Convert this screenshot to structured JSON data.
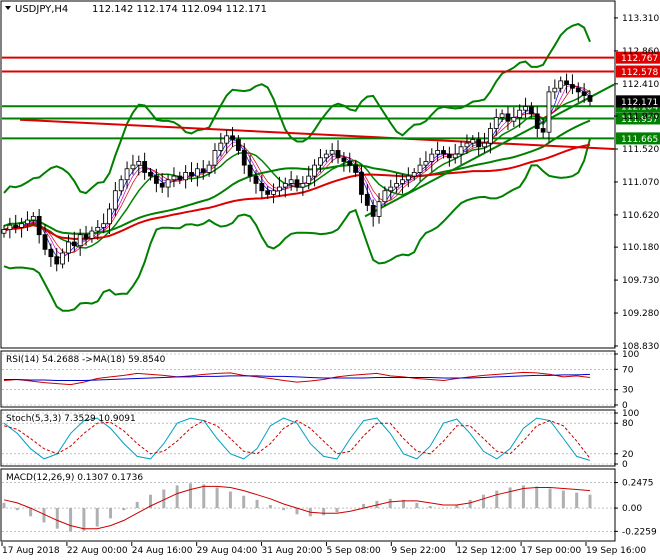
{
  "header": {
    "symbol": "USDJPY,H4",
    "ohlc": "112.142 112.174 112.094 112.171"
  },
  "chart_data": [
    {
      "type": "candlestick",
      "pane": "price",
      "ylim": [
        108.83,
        113.5
      ],
      "y_ticks": [
        "113.310",
        "112.860",
        "112.410",
        "111.970",
        "111.520",
        "111.070",
        "110.620",
        "110.180",
        "109.730",
        "109.280",
        "108.830"
      ],
      "x_ticks": [
        "17 Aug 2018",
        "22 Aug 00:00",
        "24 Aug 16:00",
        "29 Aug 04:00",
        "31 Aug 20:00",
        "5 Sep 08:00",
        "9 Sep 22:00",
        "12 Sep 12:00",
        "17 Sep 00:00",
        "19 Sep 16:00"
      ],
      "horizontal_levels": [
        {
          "value": 112.767,
          "label": "112.767",
          "color": "#dd0000"
        },
        {
          "value": 112.578,
          "label": "112.578",
          "color": "#dd0000"
        },
        {
          "value": 112.104,
          "label": "112.104",
          "color": "#008000"
        },
        {
          "value": 111.937,
          "label": "111.937",
          "color": "#008000"
        },
        {
          "value": 111.665,
          "label": "111.665",
          "color": "#008000"
        }
      ],
      "current_price": {
        "value": 112.171,
        "label": "112.171"
      },
      "closes": [
        110.42,
        110.48,
        110.45,
        110.5,
        110.55,
        110.6,
        110.35,
        110.15,
        110.05,
        109.95,
        110.1,
        110.25,
        110.2,
        110.35,
        110.3,
        110.4,
        110.45,
        110.5,
        110.7,
        110.95,
        111.1,
        111.25,
        111.3,
        111.35,
        111.2,
        111.15,
        111.05,
        111.0,
        111.1,
        111.15,
        111.1,
        111.2,
        111.15,
        111.25,
        111.2,
        111.3,
        111.5,
        111.6,
        111.7,
        111.65,
        111.5,
        111.3,
        111.15,
        111.05,
        110.95,
        110.9,
        110.95,
        111.0,
        111.05,
        111.1,
        111.0,
        111.05,
        111.15,
        111.3,
        111.4,
        111.45,
        111.5,
        111.4,
        111.35,
        111.3,
        111.2,
        110.9,
        110.75,
        110.6,
        110.8,
        110.95,
        111.0,
        111.05,
        111.1,
        111.15,
        111.2,
        111.3,
        111.35,
        111.45,
        111.5,
        111.45,
        111.4,
        111.45,
        111.55,
        111.6,
        111.65,
        111.55,
        111.6,
        111.8,
        111.95,
        112.0,
        111.9,
        111.95,
        112.05,
        112.1,
        112.0,
        111.8,
        111.75,
        112.3,
        112.35,
        112.45,
        112.4,
        112.35,
        112.3,
        112.25,
        112.17
      ]
    },
    {
      "type": "line",
      "pane": "RSI",
      "label": "RSI(14) 54.2688  ->MA(18) 59.8540",
      "y_ticks": [
        "100",
        "70",
        "30",
        "0"
      ],
      "ylim": [
        0,
        100
      ],
      "series": [
        {
          "name": "RSI(14)",
          "color": "#cc0000",
          "values": [
            48,
            50,
            47,
            44,
            42,
            40,
            45,
            52,
            55,
            58,
            62,
            60,
            58,
            55,
            57,
            60,
            62,
            63,
            58,
            55,
            52,
            48,
            45,
            47,
            50,
            55,
            58,
            60,
            62,
            57,
            55,
            52,
            50,
            48,
            52,
            55,
            58,
            60,
            62,
            64,
            63,
            60,
            55,
            57,
            54
          ]
        },
        {
          "name": "MA(18)",
          "color": "#0000cc",
          "values": [
            50,
            50,
            49,
            49,
            48,
            48,
            48,
            49,
            50,
            51,
            52,
            53,
            54,
            55,
            55,
            56,
            56,
            57,
            57,
            57,
            56,
            56,
            55,
            54,
            53,
            53,
            53,
            53,
            54,
            54,
            54,
            54,
            54,
            53,
            53,
            53,
            54,
            55,
            56,
            57,
            58,
            58,
            59,
            59,
            60
          ]
        }
      ]
    },
    {
      "type": "line",
      "pane": "Stochastic",
      "label": "Stoch(5,3,3) 7.3529 10.9091",
      "y_ticks": [
        "100",
        "80",
        "20",
        "0"
      ],
      "ylim": [
        0,
        100
      ],
      "series": [
        {
          "name": "%K",
          "color": "#00a0c0",
          "values": [
            80,
            60,
            30,
            10,
            20,
            60,
            85,
            90,
            70,
            40,
            15,
            10,
            40,
            80,
            90,
            85,
            50,
            20,
            10,
            30,
            75,
            90,
            80,
            40,
            15,
            10,
            50,
            85,
            90,
            60,
            20,
            10,
            35,
            80,
            88,
            60,
            25,
            10,
            30,
            70,
            90,
            85,
            50,
            15,
            7
          ]
        },
        {
          "name": "%D",
          "color": "#cc0000",
          "values": [
            75,
            68,
            50,
            30,
            20,
            35,
            60,
            80,
            82,
            65,
            40,
            20,
            25,
            45,
            70,
            85,
            75,
            50,
            25,
            20,
            40,
            70,
            85,
            70,
            45,
            20,
            25,
            55,
            80,
            80,
            50,
            25,
            20,
            45,
            75,
            75,
            50,
            25,
            20,
            45,
            75,
            85,
            75,
            45,
            11
          ]
        }
      ]
    },
    {
      "type": "bar",
      "pane": "MACD",
      "label": "MACD(12,26,9) 0.1307 0.1736",
      "y_ticks": [
        "0.2475",
        "0.00",
        "-0.2259"
      ],
      "ylim": [
        -0.3,
        0.35
      ],
      "series": [
        {
          "name": "MACD",
          "values": [
            0.05,
            -0.02,
            -0.08,
            -0.14,
            -0.2,
            -0.23,
            -0.22,
            -0.18,
            -0.1,
            -0.02,
            0.06,
            0.13,
            0.18,
            0.22,
            0.24,
            0.23,
            0.2,
            0.16,
            0.12,
            0.08,
            0.03,
            -0.02,
            -0.06,
            -0.08,
            -0.07,
            -0.04,
            0.0,
            0.04,
            0.07,
            0.09,
            0.08,
            0.05,
            0.02,
            0.0,
            0.03,
            0.08,
            0.13,
            0.17,
            0.2,
            0.22,
            0.21,
            0.19,
            0.17,
            0.15,
            0.13
          ]
        },
        {
          "name": "Signal",
          "color": "#cc0000",
          "values": [
            0.08,
            0.05,
            0.0,
            -0.06,
            -0.12,
            -0.17,
            -0.2,
            -0.2,
            -0.17,
            -0.12,
            -0.05,
            0.02,
            0.08,
            0.14,
            0.18,
            0.21,
            0.21,
            0.2,
            0.17,
            0.13,
            0.09,
            0.04,
            0.0,
            -0.04,
            -0.05,
            -0.05,
            -0.03,
            0.0,
            0.03,
            0.06,
            0.07,
            0.07,
            0.05,
            0.03,
            0.03,
            0.05,
            0.09,
            0.13,
            0.16,
            0.19,
            0.2,
            0.2,
            0.19,
            0.18,
            0.17
          ]
        }
      ]
    }
  ],
  "colors": {
    "bollinger": "#008000",
    "trend_red": "#dd0000",
    "trend_green": "#008000",
    "grid": "#c8c8c8",
    "axis_text": "#000000",
    "label_bg_green": "#008000",
    "label_bg_red": "#dd0000"
  }
}
